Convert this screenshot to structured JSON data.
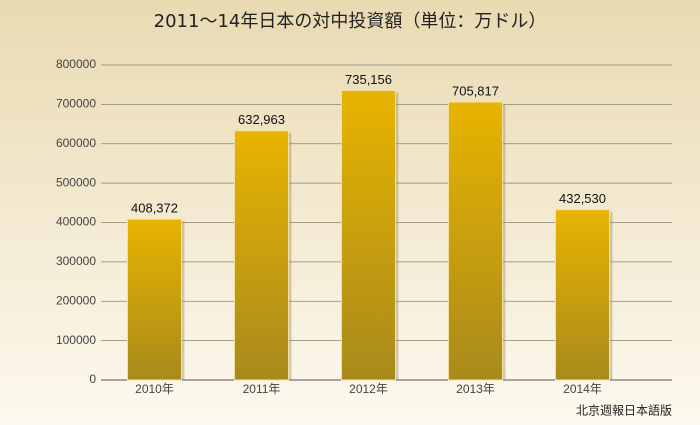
{
  "chart_data": {
    "type": "bar",
    "title": "2011～14年日本の対中投資額（単位：万ドル）",
    "categories": [
      "2010年",
      "2011年",
      "2012年",
      "2013年",
      "2014年"
    ],
    "values": [
      408372,
      632963,
      735156,
      705817,
      432530
    ],
    "value_labels": [
      "408,372",
      "632,963",
      "735,156",
      "705,817",
      "432,530"
    ],
    "color": "#d9a800",
    "ylim": [
      0,
      800000
    ],
    "yticks": [
      0,
      100000,
      200000,
      300000,
      400000,
      500000,
      600000,
      700000,
      800000
    ],
    "grid": true,
    "source": "北京週報日本語版"
  }
}
